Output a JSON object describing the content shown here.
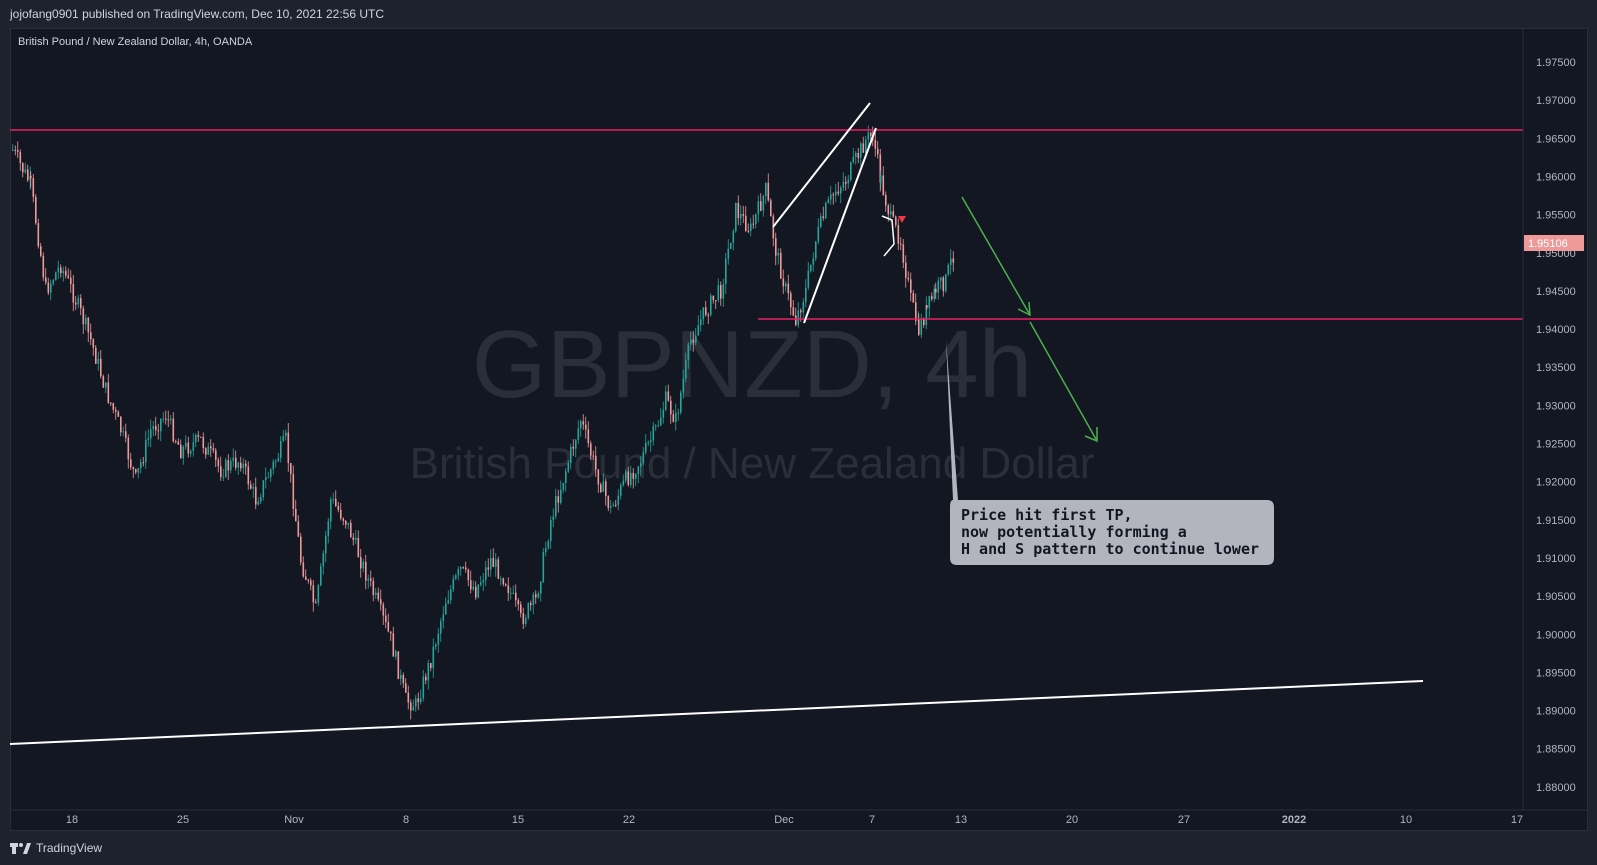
{
  "header": {
    "published": "jojofang0901 published on TradingView.com, Dec 10, 2021 22:56 UTC"
  },
  "chart": {
    "symbol_title": "British Pound / New Zealand Dollar, 4h, OANDA",
    "watermark_symbol": "GBPNZD, 4h",
    "watermark_name": "British Pound / New Zealand Dollar",
    "last_price": "1.95106",
    "price_axis": [
      "1.97500",
      "1.97000",
      "1.96500",
      "1.96000",
      "1.95500",
      "1.95000",
      "1.94500",
      "1.94000",
      "1.93500",
      "1.93000",
      "1.92500",
      "1.92000",
      "1.91500",
      "1.91000",
      "1.90500",
      "1.90000",
      "1.89500",
      "1.89000",
      "1.88500",
      "1.88000"
    ],
    "time_axis": [
      "18",
      "25",
      "Nov",
      "8",
      "15",
      "22",
      "Dec",
      "7",
      "13",
      "20",
      "27",
      "2022",
      "10",
      "17"
    ],
    "annotation": {
      "line1": "Price hit first TP,",
      "line2": "now potentially forming a",
      "line3": "H and S pattern to continue lower"
    },
    "colors": {
      "bull": "#26a69a",
      "bear": "#ef9a9a",
      "level_line": "#e91e63",
      "trend_line": "#ffffff",
      "arrow": "#4caf50",
      "note_bg": "#b2b5be"
    }
  },
  "footer": {
    "brand": "TradingView"
  }
}
